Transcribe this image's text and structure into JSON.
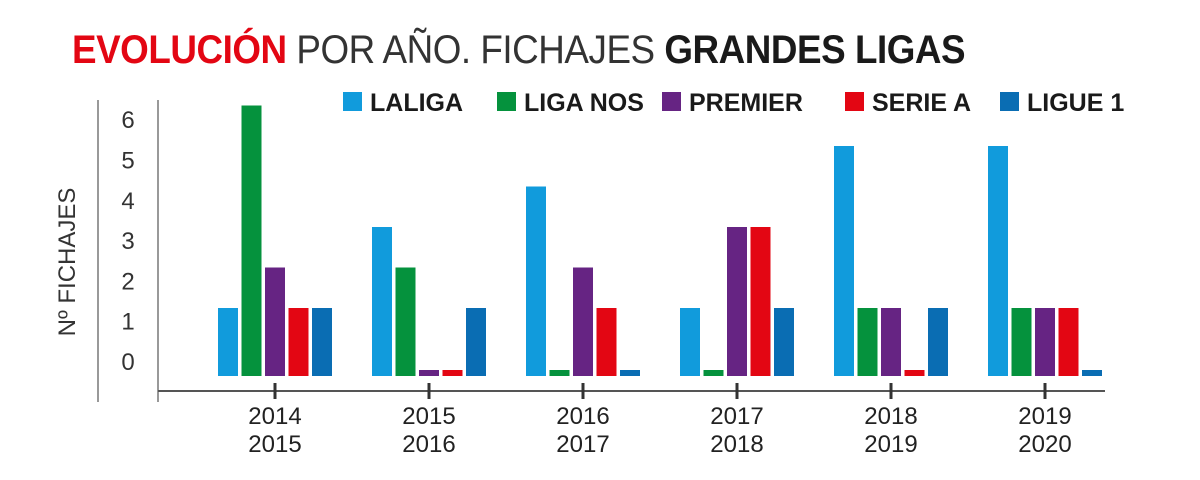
{
  "title": {
    "part1": "EVOLUCIÓN",
    "part2": "POR AÑO. FICHAJES",
    "part3": "GRANDES LIGAS"
  },
  "chart_data": {
    "type": "bar",
    "title": "EVOLUCIÓN POR AÑO. FICHAJES GRANDES LIGAS",
    "ylabel": "Nº FICHAJES",
    "xlabel": "",
    "ylim": [
      0,
      6
    ],
    "yticks": [
      "0",
      "1",
      "2",
      "3",
      "4",
      "5",
      "6"
    ],
    "grid": false,
    "legend": "top",
    "categories": [
      [
        "2014",
        "2015"
      ],
      [
        "2015",
        "2016"
      ],
      [
        "2016",
        "2017"
      ],
      [
        "2017",
        "2018"
      ],
      [
        "2018",
        "2019"
      ],
      [
        "2019",
        "2020"
      ]
    ],
    "series": [
      {
        "name": "LALIGA",
        "color": "#119bdc",
        "values": [
          1,
          3,
          4,
          1,
          5,
          5
        ]
      },
      {
        "name": "LIGA NOS",
        "color": "#05923d",
        "values": [
          6,
          2,
          0,
          0,
          1,
          1
        ]
      },
      {
        "name": "PREMIER",
        "color": "#662483",
        "values": [
          2,
          0,
          2,
          3,
          1,
          1
        ]
      },
      {
        "name": "SERIE A",
        "color": "#e30613",
        "values": [
          1,
          0,
          1,
          3,
          0,
          1
        ]
      },
      {
        "name": "LIGUE 1",
        "color": "#0a6db3",
        "values": [
          1,
          1,
          0,
          1,
          1,
          0
        ]
      }
    ]
  }
}
